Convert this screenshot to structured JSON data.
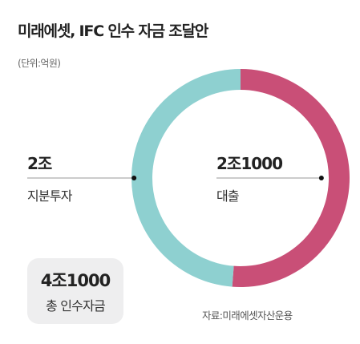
{
  "title": "미래에셋, IFC 인수 자금 조달안",
  "unit": "(단위:억원)",
  "source": "자료:미래에셋자산운용",
  "total": {
    "value": "4조1000",
    "label": "총 인수자금"
  },
  "labels": {
    "equity": {
      "value": "2조",
      "name": "지분투자"
    },
    "loan": {
      "value": "2조1000",
      "name": "대출"
    }
  },
  "chart_data": {
    "type": "pie",
    "title": "미래에셋, IFC 인수 자금 조달안",
    "unit": "억원",
    "donut": true,
    "categories": [
      "대출",
      "지분투자"
    ],
    "values": [
      21000,
      20000
    ],
    "colors": [
      "#c94f77",
      "#8ed0d0"
    ],
    "total": 41000
  }
}
